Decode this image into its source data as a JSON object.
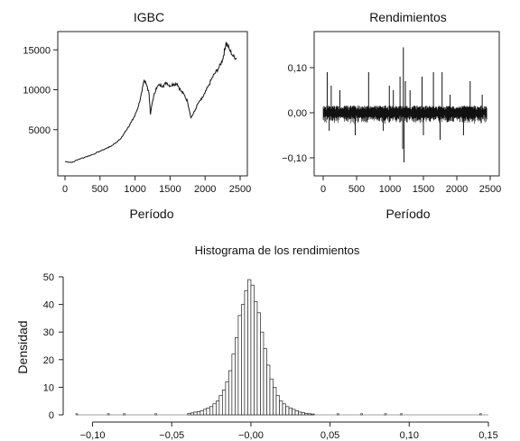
{
  "chart_data": [
    {
      "type": "line",
      "title": "IGBC",
      "xlabel": "Período",
      "ylabel": "",
      "xlim": [
        0,
        2500
      ],
      "ylim": [
        0,
        16500
      ],
      "xticks": [
        "0",
        "500",
        "1000",
        "1500",
        "2000",
        "2500"
      ],
      "yticks": [
        "5000",
        "10000",
        "15000"
      ],
      "series": [
        {
          "x": [
            0,
            100,
            200,
            300,
            400,
            500,
            600,
            650,
            700,
            800,
            850,
            900,
            950,
            1000,
            1050,
            1100,
            1130,
            1150,
            1200,
            1220,
            1250,
            1300,
            1350,
            1400,
            1450,
            1500,
            1550,
            1600,
            1650,
            1700,
            1750,
            1800,
            1850,
            1900,
            1950,
            2000,
            2050,
            2100,
            2150,
            2200,
            2250,
            2280,
            2300,
            2350,
            2400,
            2450
          ],
          "y": [
            1000,
            900,
            1300,
            1600,
            1900,
            2300,
            2700,
            2900,
            3200,
            3900,
            4600,
            5300,
            6000,
            6800,
            8000,
            9800,
            11200,
            11000,
            9500,
            6900,
            8600,
            10200,
            10600,
            10500,
            10900,
            10500,
            10700,
            10800,
            9900,
            9400,
            8500,
            6500,
            7300,
            8300,
            8800,
            9600,
            10500,
            11500,
            12200,
            12800,
            13800,
            15000,
            15900,
            15000,
            14200,
            13900
          ]
        }
      ]
    },
    {
      "type": "line",
      "title": "Rendimientos",
      "xlabel": "Período",
      "ylabel": "",
      "xlim": [
        0,
        2500
      ],
      "ylim": [
        -0.12,
        0.16
      ],
      "xticks": [
        "0",
        "500",
        "1000",
        "1500",
        "2000",
        "2500"
      ],
      "yticks": [
        "0,10",
        "0,00",
        "−0,10"
      ],
      "spikes": {
        "x": [
          60,
          90,
          120,
          250,
          480,
          680,
          900,
          990,
          1050,
          1150,
          1190,
          1200,
          1210,
          1230,
          1300,
          1480,
          1500,
          1650,
          1750,
          1780,
          1900,
          2100,
          2200,
          2380
        ],
        "y": [
          0.09,
          -0.04,
          0.06,
          0.05,
          -0.05,
          0.09,
          -0.04,
          0.06,
          0.05,
          0.08,
          -0.08,
          0.145,
          -0.11,
          0.07,
          0.05,
          0.08,
          -0.05,
          0.09,
          -0.06,
          0.09,
          0.04,
          -0.05,
          0.07,
          0.04
        ]
      }
    },
    {
      "type": "bar",
      "title": "Histograma de los rendimientos",
      "xlabel": "",
      "ylabel": "Densidad",
      "xlim": [
        -0.11,
        0.15
      ],
      "ylim": [
        0,
        50
      ],
      "xticks": [
        "−0,10",
        "−0,05",
        "−0,00",
        "0,05",
        "0,10",
        "0,15"
      ],
      "yticks": [
        "0",
        "10",
        "20",
        "30",
        "40",
        "50"
      ],
      "bin_width": 0.002,
      "bin_starts": [
        -0.04,
        -0.038,
        -0.036,
        -0.034,
        -0.032,
        -0.03,
        -0.028,
        -0.026,
        -0.024,
        -0.022,
        -0.02,
        -0.018,
        -0.016,
        -0.014,
        -0.012,
        -0.01,
        -0.008,
        -0.006,
        -0.004,
        -0.002,
        0.0,
        0.002,
        0.004,
        0.006,
        0.008,
        0.01,
        0.012,
        0.014,
        0.016,
        0.018,
        0.02,
        0.022,
        0.024,
        0.026,
        0.028,
        0.03,
        0.032,
        0.034,
        0.036,
        0.038
      ],
      "values": [
        0.5,
        0.7,
        1.0,
        1.2,
        1.5,
        2.0,
        2.5,
        3.0,
        4.0,
        5.0,
        7.0,
        9.0,
        12.0,
        16.0,
        22.0,
        28.0,
        36.0,
        40.0,
        45.0,
        49.0,
        47.0,
        41.0,
        37.0,
        30.0,
        24.0,
        18.0,
        13.0,
        10.0,
        7.0,
        5.0,
        4.0,
        3.0,
        2.5,
        2.0,
        1.5,
        1.0,
        0.8,
        0.5,
        0.4,
        0.3
      ],
      "outlier_x": [
        -0.11,
        -0.09,
        -0.08,
        -0.06,
        0.055,
        0.07,
        0.085,
        0.095,
        0.145
      ]
    }
  ]
}
